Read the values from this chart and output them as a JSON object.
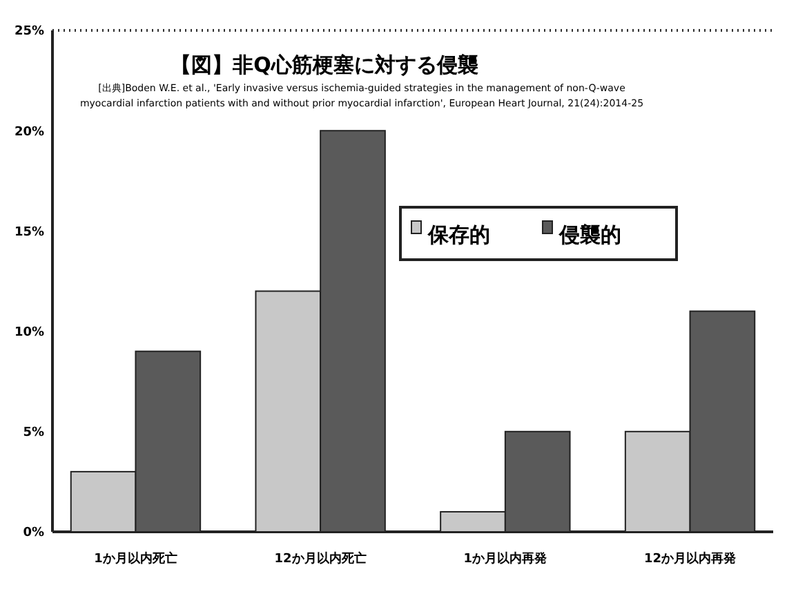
{
  "chart_data": {
    "type": "bar",
    "title": "【図】非Q心筋梗塞に対する侵襲",
    "subtitle": "[出典]Boden W.E. et al., 'Early invasive versus ischemia-guided strategies in the management of non-Q-wave myocardial infarction patients with and without prior myocardial infarction', European Heart Journal, 21(24):2014-25",
    "categories": [
      "1か月以内死亡",
      "12か月以内死亡",
      "1か月以内再発",
      "12か月以内再発"
    ],
    "series": [
      {
        "name": "保存的",
        "color": "#c8c8c8",
        "values": [
          3,
          12,
          1,
          5
        ]
      },
      {
        "name": "侵襲的",
        "color": "#5a5a5a",
        "values": [
          9,
          20,
          5,
          11
        ]
      }
    ],
    "ylim": [
      0,
      25
    ],
    "yticks": [
      {
        "value": 0,
        "label": "0%"
      },
      {
        "value": 5,
        "label": "5%"
      },
      {
        "value": 10,
        "label": "10%"
      },
      {
        "value": 15,
        "label": "15%"
      },
      {
        "value": 20,
        "label": "20%"
      },
      {
        "value": 25,
        "label": "25%"
      }
    ],
    "grid": false,
    "legend": "top right"
  }
}
